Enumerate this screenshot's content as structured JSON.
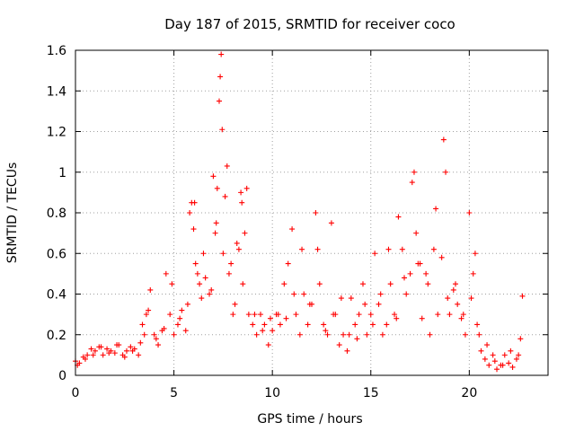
{
  "chart_data": {
    "type": "scatter",
    "title": "Day 187 of 2015, SRMTID for receiver coco",
    "xlabel": "GPS time / hours",
    "ylabel": "SRMTID / TECUs",
    "xlim": [
      0,
      24
    ],
    "ylim": [
      0,
      1.6
    ],
    "xticks": [
      0,
      5,
      10,
      15,
      20
    ],
    "xtick_labels": [
      "0",
      "5",
      "10",
      "15",
      "20"
    ],
    "yticks": [
      0,
      0.2,
      0.4,
      0.6,
      0.8,
      1.0,
      1.2,
      1.4,
      1.6
    ],
    "ytick_labels": [
      "0",
      "0.2",
      "0.4",
      "0.6",
      "0.8",
      "1",
      "1.2",
      "1.4",
      "1.6"
    ],
    "grid": true,
    "marker": "+",
    "series": [
      {
        "name": "SRMTID",
        "color": "#ff0000",
        "x": [
          0.0,
          0.2,
          0.4,
          0.6,
          0.8,
          1.0,
          1.2,
          1.4,
          1.6,
          1.8,
          2.0,
          2.2,
          2.4,
          2.6,
          2.8,
          3.0,
          3.2,
          3.4,
          3.5,
          3.6,
          3.8,
          4.0,
          4.2,
          4.4,
          4.6,
          4.8,
          5.0,
          5.2,
          5.4,
          5.6,
          5.8,
          5.9,
          6.0,
          6.1,
          6.2,
          6.3,
          6.4,
          6.6,
          6.8,
          7.0,
          7.1,
          7.2,
          7.3,
          7.35,
          7.4,
          7.5,
          7.6,
          7.8,
          8.0,
          8.2,
          8.4,
          8.5,
          8.6,
          8.8,
          9.0,
          9.2,
          9.4,
          9.6,
          9.8,
          10.0,
          10.2,
          10.4,
          10.6,
          10.8,
          11.0,
          11.2,
          11.4,
          11.6,
          11.8,
          12.0,
          12.2,
          12.4,
          12.6,
          12.8,
          13.0,
          13.2,
          13.4,
          13.6,
          13.8,
          14.0,
          14.2,
          14.4,
          14.6,
          14.8,
          15.0,
          15.2,
          15.4,
          15.6,
          15.8,
          16.0,
          16.2,
          16.4,
          16.6,
          16.8,
          17.0,
          17.2,
          17.4,
          17.6,
          17.8,
          18.0,
          18.2,
          18.4,
          18.6,
          18.7,
          18.8,
          19.0,
          19.2,
          19.4,
          19.6,
          19.8,
          20.0,
          20.2,
          20.4,
          20.6,
          20.8,
          21.0,
          21.2,
          21.4,
          21.6,
          21.8,
          22.0,
          22.2,
          22.4,
          22.6,
          22.7,
          0.1,
          0.5,
          0.9,
          1.3,
          1.7,
          2.1,
          2.5,
          2.9,
          3.3,
          3.7,
          4.1,
          4.5,
          4.9,
          5.3,
          5.7,
          6.05,
          6.5,
          6.9,
          7.15,
          7.45,
          7.7,
          7.9,
          8.1,
          8.3,
          8.45,
          8.7,
          9.1,
          9.5,
          9.9,
          10.3,
          10.7,
          11.1,
          11.5,
          11.9,
          12.3,
          12.7,
          13.1,
          13.5,
          13.9,
          14.3,
          14.7,
          15.1,
          15.5,
          15.9,
          16.3,
          16.7,
          17.1,
          17.3,
          17.5,
          17.9,
          18.3,
          18.9,
          19.3,
          19.7,
          20.1,
          20.3,
          20.5,
          20.9,
          21.3,
          21.7,
          22.1,
          22.5
        ],
        "y": [
          0.07,
          0.06,
          0.09,
          0.1,
          0.13,
          0.12,
          0.14,
          0.1,
          0.13,
          0.12,
          0.11,
          0.15,
          0.1,
          0.12,
          0.14,
          0.13,
          0.1,
          0.25,
          0.2,
          0.3,
          0.42,
          0.2,
          0.15,
          0.22,
          0.5,
          0.3,
          0.2,
          0.25,
          0.32,
          0.22,
          0.8,
          0.85,
          0.72,
          0.55,
          0.5,
          0.45,
          0.38,
          0.48,
          0.4,
          0.98,
          0.7,
          0.92,
          1.35,
          1.47,
          1.58,
          0.6,
          0.88,
          0.5,
          0.3,
          0.65,
          0.9,
          0.45,
          0.7,
          0.3,
          0.25,
          0.2,
          0.3,
          0.25,
          0.15,
          0.22,
          0.3,
          0.25,
          0.45,
          0.55,
          0.72,
          0.3,
          0.2,
          0.4,
          0.25,
          0.35,
          0.8,
          0.45,
          0.25,
          0.2,
          0.75,
          0.3,
          0.15,
          0.2,
          0.12,
          0.38,
          0.25,
          0.3,
          0.45,
          0.2,
          0.3,
          0.6,
          0.35,
          0.2,
          0.25,
          0.45,
          0.3,
          0.78,
          0.62,
          0.4,
          0.5,
          1.0,
          0.55,
          0.28,
          0.5,
          0.2,
          0.62,
          0.3,
          0.58,
          1.16,
          1.0,
          0.3,
          0.42,
          0.35,
          0.28,
          0.2,
          0.8,
          0.5,
          0.25,
          0.12,
          0.08,
          0.05,
          0.1,
          0.03,
          0.05,
          0.1,
          0.06,
          0.04,
          0.08,
          0.18,
          0.39,
          0.05,
          0.08,
          0.1,
          0.14,
          0.11,
          0.15,
          0.09,
          0.12,
          0.16,
          0.32,
          0.18,
          0.23,
          0.45,
          0.28,
          0.35,
          0.85,
          0.6,
          0.42,
          0.75,
          1.21,
          1.03,
          0.55,
          0.35,
          0.62,
          0.85,
          0.92,
          0.3,
          0.22,
          0.28,
          0.3,
          0.28,
          0.4,
          0.62,
          0.35,
          0.62,
          0.22,
          0.3,
          0.38,
          0.2,
          0.18,
          0.35,
          0.25,
          0.4,
          0.62,
          0.28,
          0.48,
          0.95,
          0.7,
          0.55,
          0.45,
          0.82,
          0.38,
          0.45,
          0.3,
          0.38,
          0.6,
          0.2,
          0.15,
          0.07,
          0.05,
          0.12,
          0.1
        ]
      }
    ]
  }
}
